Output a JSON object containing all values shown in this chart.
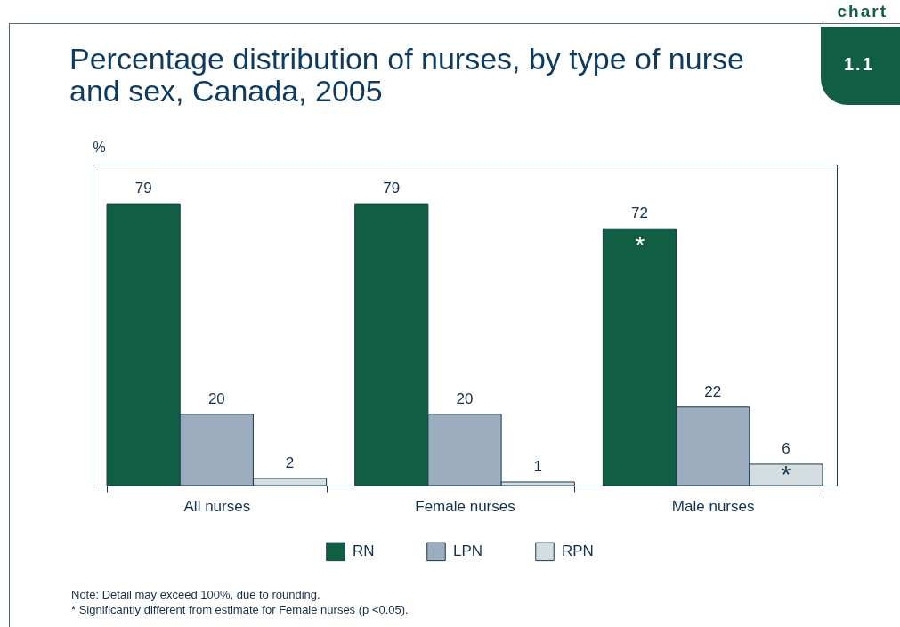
{
  "chart_data": {
    "type": "bar",
    "title": "Percentage distribution of nurses, by type of nurse and sex, Canada, 2005",
    "ylabel": "%",
    "categories": [
      "All nurses",
      "Female nurses",
      "Male nurses"
    ],
    "series": [
      {
        "name": "RN",
        "color": "#115e45",
        "values": [
          79,
          79,
          72
        ]
      },
      {
        "name": "LPN",
        "color": "#9badbf",
        "values": [
          20,
          20,
          22
        ]
      },
      {
        "name": "RPN",
        "color": "#d4dde0",
        "values": [
          2,
          1,
          6
        ]
      }
    ],
    "ylim": [
      0,
      90
    ],
    "data_labels": true,
    "legend": "bottom",
    "grid": false,
    "annotations": [
      "chart",
      "1.1",
      "*",
      "*",
      "Note: Detail may exceed 100%, due to rounding.",
      "* Significantly different from estimate for Female nurses (p <0.05)."
    ]
  }
}
